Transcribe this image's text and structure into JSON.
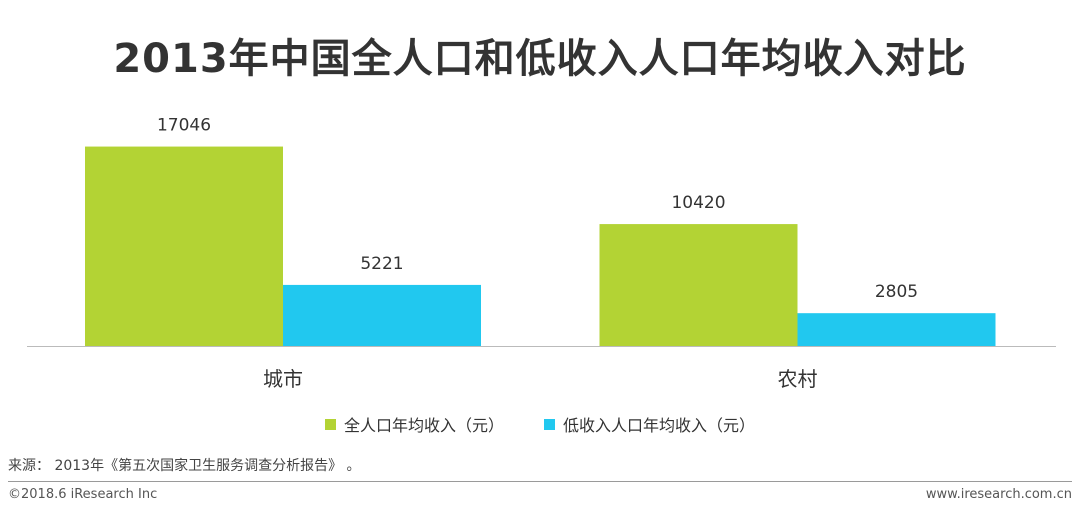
{
  "colors": {
    "series1": "#b3d334",
    "series2": "#21c8ef",
    "axis": "#bbbbbb",
    "text": "#333333"
  },
  "chart_data": {
    "type": "bar",
    "title": "2013年中国全人口和低收入人口年均收入对比",
    "categories": [
      "城市",
      "农村"
    ],
    "series": [
      {
        "name": "全人口年均收入（元）",
        "values": [
          17046,
          10420
        ]
      },
      {
        "name": "低收入人口年均收入（元）",
        "values": [
          5221,
          2805
        ]
      }
    ],
    "ylim": [
      0,
      20000
    ],
    "grid": false,
    "legend": "bottom",
    "xlabel": "",
    "ylabel": ""
  },
  "source": "来源： 2013年《第五次国家卫生服务调查分析报告》 。",
  "footer": {
    "copyright": "©2018.6 iResearch Inc",
    "website": "www.iresearch.com.cn"
  }
}
